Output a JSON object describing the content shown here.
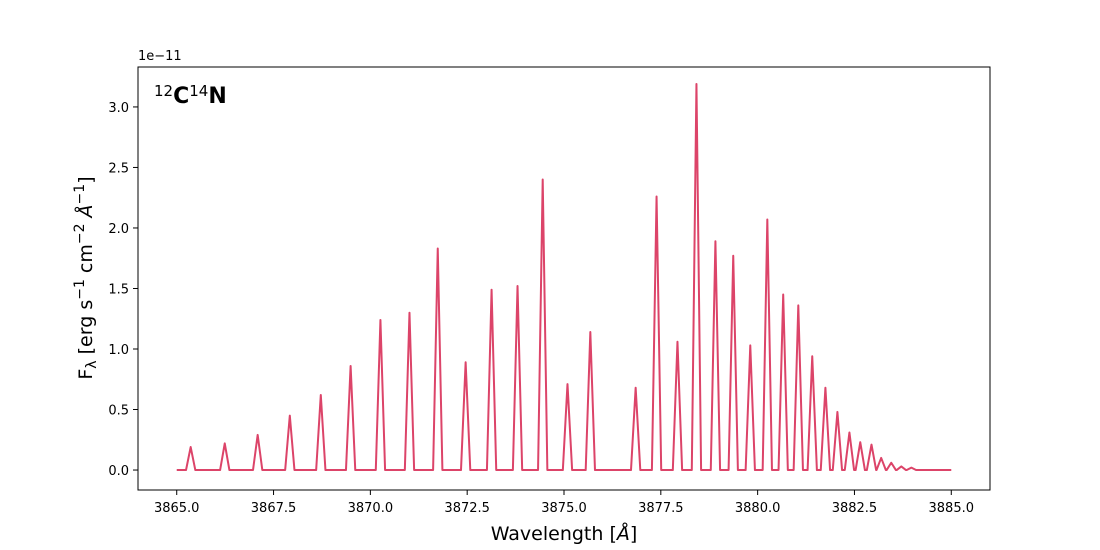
{
  "chart_data": {
    "type": "line",
    "annotation": [
      "12",
      "C",
      "14",
      "N"
    ],
    "offset_text": "1e−11",
    "xlabel": [
      "Wavelength [",
      "Å",
      "]"
    ],
    "ylabel": [
      "F",
      "λ",
      " [erg s",
      "−1",
      " cm",
      "−2",
      " ",
      "Å",
      "−1",
      "]"
    ],
    "color": "#dc4469",
    "xlim": [
      3864,
      3886
    ],
    "ylim": [
      -0.165,
      3.33
    ],
    "xticks": [
      {
        "value": 3865,
        "label": "3865.0"
      },
      {
        "value": 3867.5,
        "label": "3867.5"
      },
      {
        "value": 3870,
        "label": "3870.0"
      },
      {
        "value": 3872.5,
        "label": "3872.5"
      },
      {
        "value": 3875,
        "label": "3875.0"
      },
      {
        "value": 3877.5,
        "label": "3877.5"
      },
      {
        "value": 3880,
        "label": "3880.0"
      },
      {
        "value": 3882.5,
        "label": "3882.5"
      },
      {
        "value": 3885,
        "label": "3885.0"
      }
    ],
    "yticks": [
      {
        "value": 0,
        "label": "0.0"
      },
      0.5,
      {
        "value": 1,
        "label": "1.0"
      },
      1.5,
      {
        "value": 2,
        "label": "2.0"
      },
      2.5,
      {
        "value": 3,
        "label": "3.0"
      }
    ],
    "x": [
      3865.0,
      3865.24,
      3865.36,
      3865.48,
      3866.12,
      3866.24,
      3866.36,
      3866.97,
      3867.09,
      3867.21,
      3867.8,
      3867.92,
      3868.04,
      3868.6,
      3868.72,
      3868.84,
      3869.37,
      3869.49,
      3869.61,
      3870.14,
      3870.26,
      3870.38,
      3870.89,
      3871.01,
      3871.13,
      3871.62,
      3871.74,
      3871.86,
      3872.34,
      3872.46,
      3872.58,
      3873.01,
      3873.13,
      3873.25,
      3873.68,
      3873.8,
      3873.92,
      3874.33,
      3874.45,
      3874.57,
      3874.97,
      3875.09,
      3875.21,
      3875.56,
      3875.68,
      3875.8,
      3876.73,
      3876.85,
      3876.97,
      3877.27,
      3877.39,
      3877.51,
      3877.81,
      3877.93,
      3878.05,
      3878.3,
      3878.42,
      3878.54,
      3878.79,
      3878.91,
      3879.03,
      3879.25,
      3879.37,
      3879.49,
      3879.69,
      3879.81,
      3879.93,
      3880.13,
      3880.25,
      3880.37,
      3880.54,
      3880.66,
      3880.78,
      3880.93,
      3881.05,
      3881.17,
      3881.29,
      3881.41,
      3881.53,
      3881.63,
      3881.75,
      3881.87,
      3881.94,
      3882.06,
      3882.18,
      3882.25,
      3882.37,
      3882.49,
      3882.53,
      3882.65,
      3882.77,
      3882.82,
      3882.94,
      3883.06,
      3883.07,
      3883.19,
      3883.31,
      3883.33,
      3883.45,
      3883.57,
      3883.59,
      3883.71,
      3883.83,
      3883.85,
      3883.97,
      3884.09,
      3885.0
    ],
    "values": [
      0,
      0,
      0.19,
      0,
      0,
      0.22,
      0,
      0,
      0.29,
      0,
      0,
      0.45,
      0,
      0,
      0.62,
      0,
      0,
      0.86,
      0,
      0,
      1.24,
      0,
      0,
      1.3,
      0,
      0,
      1.83,
      0,
      0,
      0.89,
      0,
      0,
      1.49,
      0,
      0,
      1.52,
      0,
      0,
      2.4,
      0,
      0,
      0.71,
      0,
      0,
      1.14,
      0,
      0,
      0.68,
      0,
      0,
      2.26,
      0,
      0,
      1.06,
      0,
      0,
      3.19,
      0,
      0,
      1.89,
      0,
      0,
      1.77,
      0,
      0,
      1.03,
      0,
      0,
      2.07,
      0,
      0,
      1.45,
      0,
      0,
      1.36,
      0,
      0,
      0.94,
      0,
      0,
      0.68,
      0,
      0,
      0.48,
      0,
      0,
      0.31,
      0,
      0,
      0.23,
      0,
      0,
      0.21,
      0,
      0,
      0.1,
      0,
      0,
      0.06,
      0,
      0,
      0.03,
      0,
      0,
      0.02,
      0,
      0
    ]
  }
}
